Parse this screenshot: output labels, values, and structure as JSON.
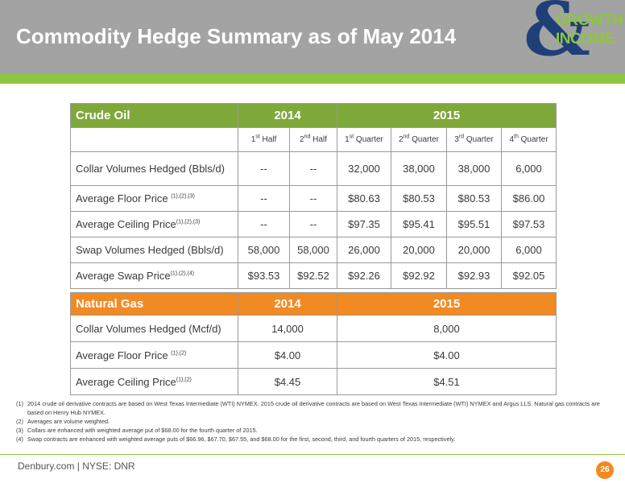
{
  "title": "Commodity Hedge Summary as of May 2014",
  "logo": {
    "amp": "&",
    "word1": "GROWTH",
    "word2": "INCOME"
  },
  "oil": {
    "header": [
      "Crude Oil",
      "2014",
      "2015"
    ],
    "sub": [
      {
        "n": "1",
        "s": "st",
        "t": " Half"
      },
      {
        "n": "2",
        "s": "nd",
        "t": " Half"
      },
      {
        "n": "1",
        "s": "st",
        "t": " Quarter"
      },
      {
        "n": "2",
        "s": "nd",
        "t": " Quarter"
      },
      {
        "n": "3",
        "s": "rd",
        "t": " Quarter"
      },
      {
        "n": "4",
        "s": "th",
        "t": " Quarter"
      }
    ],
    "rows": [
      {
        "label": "Collar Volumes Hedged (Bbls/d)",
        "sup": "",
        "values": [
          "--",
          "--",
          "32,000",
          "38,000",
          "38,000",
          "6,000"
        ]
      },
      {
        "label": "Average Floor Price ",
        "sup": "(1),(2),(3)",
        "values": [
          "--",
          "--",
          "$80.63",
          "$80.53",
          "$80.53",
          "$86.00"
        ]
      },
      {
        "label": "Average Ceiling Price",
        "sup": "(1),(2),(3)",
        "values": [
          "--",
          "--",
          "$97.35",
          "$95.41",
          "$95.51",
          "$97.53"
        ]
      },
      {
        "label": "Swap Volumes Hedged (Bbls/d)",
        "sup": "",
        "values": [
          "58,000",
          "58,000",
          "26,000",
          "20,000",
          "20,000",
          "6,000"
        ]
      },
      {
        "label": "Average Swap Price",
        "sup": "(1),(2),(4)",
        "values": [
          "$93.53",
          "$92.52",
          "$92.26",
          "$92.92",
          "$92.93",
          "$92.05"
        ]
      }
    ]
  },
  "gas": {
    "header": [
      "Natural Gas",
      "2014",
      "2015"
    ],
    "rows": [
      {
        "label": "Collar Volumes Hedged (Mcf/d)",
        "sup": "",
        "values": [
          "14,000",
          "8,000"
        ]
      },
      {
        "label": "Average Floor Price ",
        "sup": "(1),(2)",
        "values": [
          "$4.00",
          "$4.00"
        ]
      },
      {
        "label": "Average Ceiling Price",
        "sup": "(1),(2)",
        "values": [
          "$4.45",
          "$4.51"
        ]
      }
    ]
  },
  "notes": [
    {
      "num": "(1)",
      "text": "2014 crude oil derivative contracts are based on West Texas Intermediate (WTI) NYMEX. 2015 crude oil derivative contracts are based on West Texas Intermediate (WTI) NYMEX and Argus LLS.  Natural gas contracts are based on Henry Hub NYMEX."
    },
    {
      "num": "(2)",
      "text": "Averages are volume weighted."
    },
    {
      "num": "(3)",
      "text": "Collars are enhanced with weighted average put of $68.00 for the fourth quarter of 2015."
    },
    {
      "num": "(4)",
      "text": "Swap contracts are enhanced with weighted average puts of $66.96, $67.70, $67.55, and $68.00 for the first, second, third, and fourth quarters of 2015, respectively."
    }
  ],
  "footer": "Denbury.com | NYSE: DNR",
  "page_number": "26",
  "colors": {
    "oil_header": "#7fa83a",
    "gas_header": "#f28a23",
    "header_bar": "#a3a3a3",
    "stripe": "#8dc63f",
    "logo_blue": "#1f3f78"
  }
}
